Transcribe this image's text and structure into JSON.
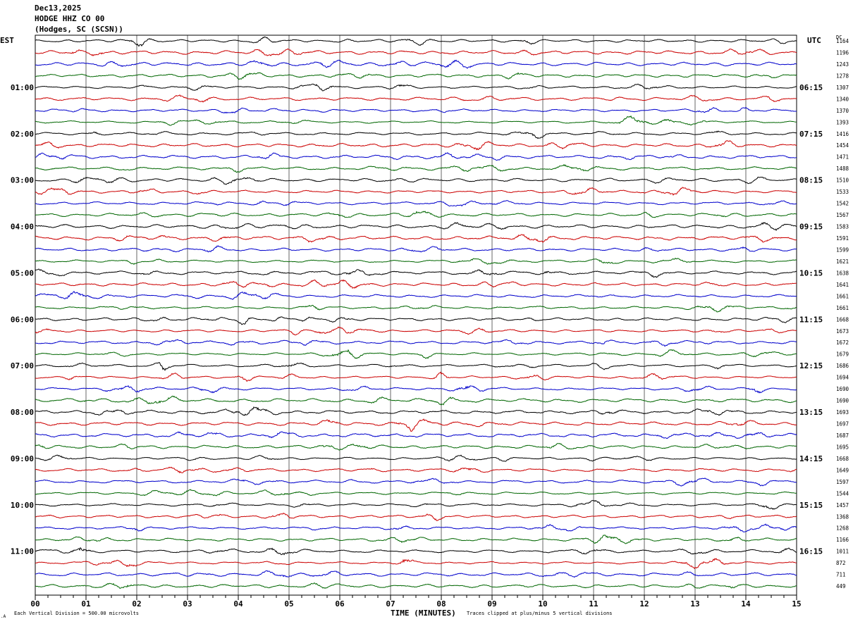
{
  "header": {
    "date": "Dec13,2025",
    "station": "HODGE HHZ CO 00",
    "location": "(Hodges, SC (SCSN))"
  },
  "left_timezone": "EST",
  "right_timezone": "UTC",
  "right_header": "DC",
  "chart_data": {
    "type": "line",
    "title": "",
    "xlabel": "TIME (MINUTES)",
    "xlim": [
      0,
      15
    ],
    "x_ticks": [
      "00",
      "01",
      "02",
      "03",
      "04",
      "05",
      "06",
      "07",
      "08",
      "09",
      "10",
      "11",
      "12",
      "13",
      "14",
      "15"
    ],
    "rows_per_hour": 4,
    "row_count": 48,
    "row_colors": [
      "#000000",
      "#cc0000",
      "#0000cc",
      "#006600"
    ],
    "left_hour_labels": [
      "01:00",
      "02:00",
      "03:00",
      "04:00",
      "05:00",
      "06:00",
      "07:00",
      "08:00",
      "09:00",
      "10:00",
      "11:00"
    ],
    "right_hour_labels": [
      "06:15",
      "07:15",
      "08:15",
      "09:15",
      "10:15",
      "11:15",
      "12:15",
      "13:15",
      "14:15",
      "15:15",
      "16:15"
    ],
    "dc_offsets": [
      "1164",
      "1196",
      "1243",
      "1278",
      "1307",
      "1340",
      "1370",
      "1393",
      "1416",
      "1454",
      "1471",
      "1488",
      "1510",
      "1533",
      "1542",
      "1567",
      "1583",
      "1591",
      "1599",
      "1621",
      "1638",
      "1641",
      "1661",
      "1661",
      "1668",
      "1673",
      "1672",
      "1679",
      "1686",
      "1694",
      "1690",
      "1690",
      "1693",
      "1697",
      "1687",
      "1695",
      "1668",
      "1649",
      "1597",
      "1544",
      "1457",
      "1368",
      "1268",
      "1166",
      "1011",
      "872",
      "711",
      "449"
    ],
    "events": [
      {
        "row": 28,
        "minute": 2.5,
        "amp": 1.6
      },
      {
        "row": 33,
        "minute": 7.4,
        "amp": 1.2
      },
      {
        "row": 29,
        "minute": 8.0,
        "amp": 1.1
      },
      {
        "row": 30,
        "minute": 14.2,
        "amp": 1.2
      },
      {
        "row": 44,
        "minute": 0.9,
        "amp": 1.3
      },
      {
        "row": 45,
        "minute": 7.3,
        "amp": 1.4
      },
      {
        "row": 24,
        "minute": 4.1,
        "amp": 1.0
      }
    ]
  },
  "footer": {
    "scale": "Each Vertical Division =  500.00 microvolts",
    "clip": "Traces clipped at plus/minus 5 vertical divisions"
  }
}
